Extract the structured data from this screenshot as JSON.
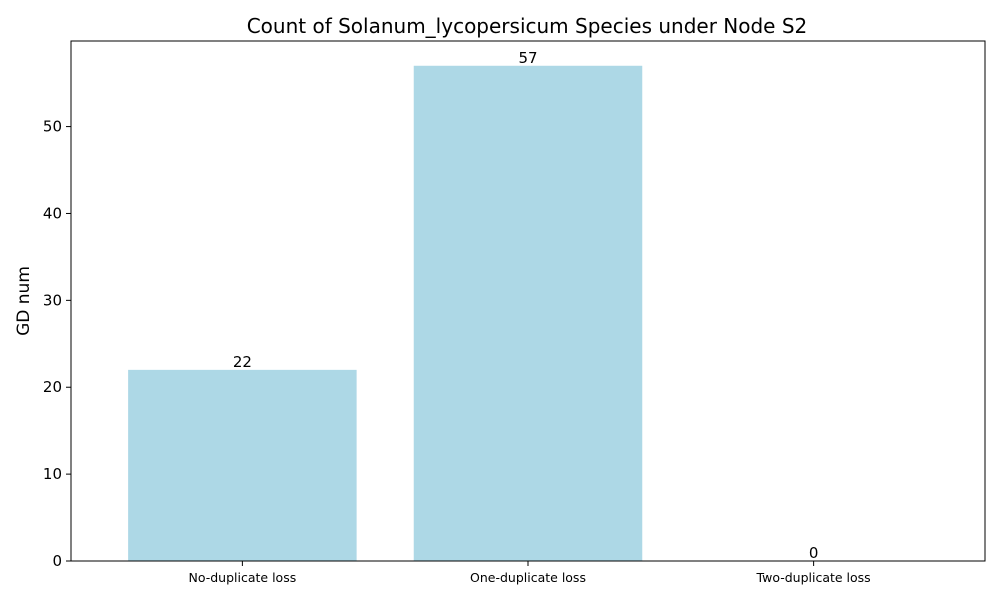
{
  "chart_data": {
    "type": "bar",
    "title": "Count of Solanum_lycopersicum Species under Node S2",
    "xlabel": "",
    "ylabel": "GD num",
    "categories": [
      "No-duplicate loss",
      "One-duplicate loss",
      "Two-duplicate loss"
    ],
    "values": [
      22,
      57,
      0
    ],
    "data_labels": [
      "22",
      "57",
      "0"
    ],
    "ylim": [
      0,
      59.85
    ],
    "yticks": [
      0,
      10,
      20,
      30,
      40,
      50
    ],
    "bar_color": "#add8e6",
    "grid": false,
    "legend": "none"
  }
}
